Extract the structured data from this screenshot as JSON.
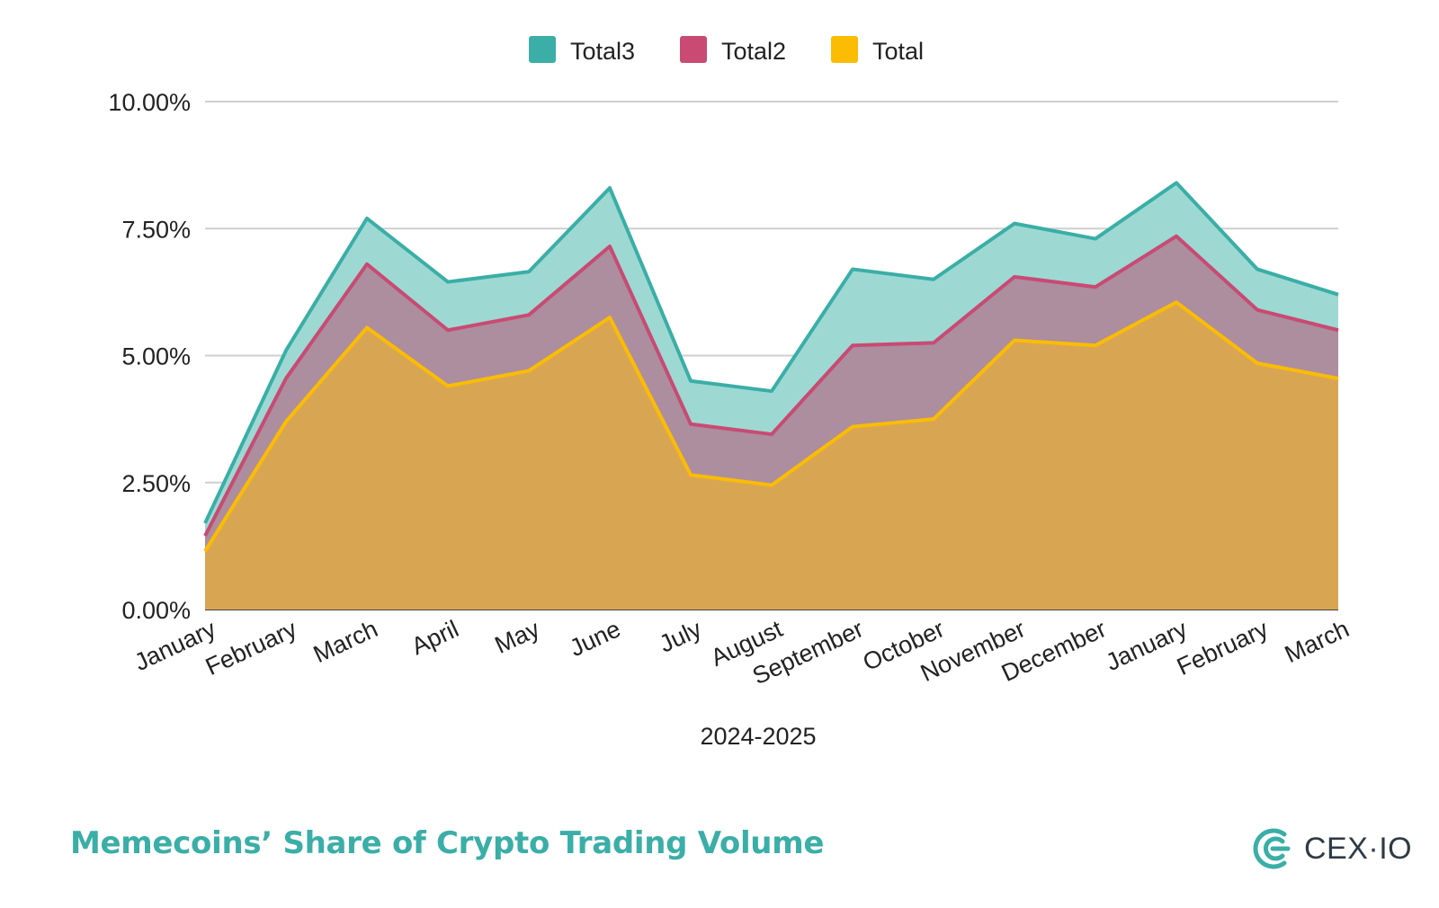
{
  "chart_data": {
    "type": "area",
    "xlabel": "2024-2025",
    "categories": [
      "January",
      "February",
      "March",
      "April",
      "May",
      "June",
      "July",
      "August",
      "September",
      "October",
      "November",
      "December",
      "January",
      "February",
      "March"
    ],
    "ylim": [
      0,
      10
    ],
    "yticks": [
      "0.00%",
      "2.50%",
      "5.00%",
      "7.50%",
      "10.00%"
    ],
    "ytick_values": [
      0,
      2.5,
      5,
      7.5,
      10
    ],
    "grid": true,
    "legend_position": "top",
    "series": [
      {
        "name": "Total3",
        "color": "#3aaea7",
        "fill": "#9dd9d2",
        "values": [
          1.7,
          5.1,
          7.7,
          6.45,
          6.65,
          8.3,
          4.5,
          4.3,
          6.7,
          6.5,
          7.6,
          7.3,
          8.4,
          6.7,
          6.2
        ]
      },
      {
        "name": "Total2",
        "color": "#c94a73",
        "fill": "#ac8e9e",
        "values": [
          1.45,
          4.55,
          6.8,
          5.5,
          5.8,
          7.15,
          3.65,
          3.45,
          5.2,
          5.25,
          6.55,
          6.35,
          7.35,
          5.9,
          5.5
        ]
      },
      {
        "name": "Total",
        "color": "#fbbc04",
        "fill": "#d8a653",
        "values": [
          1.15,
          3.7,
          5.55,
          4.4,
          4.7,
          5.75,
          2.65,
          2.45,
          3.6,
          3.75,
          5.3,
          5.2,
          6.05,
          4.85,
          4.55
        ]
      }
    ]
  },
  "footer": {
    "title": "Memecoins’ Share of Crypto Trading Volume",
    "brand": "CEX·IO",
    "brand_icon": "cex-io-logo-icon",
    "title_color": "#3aaea7"
  }
}
